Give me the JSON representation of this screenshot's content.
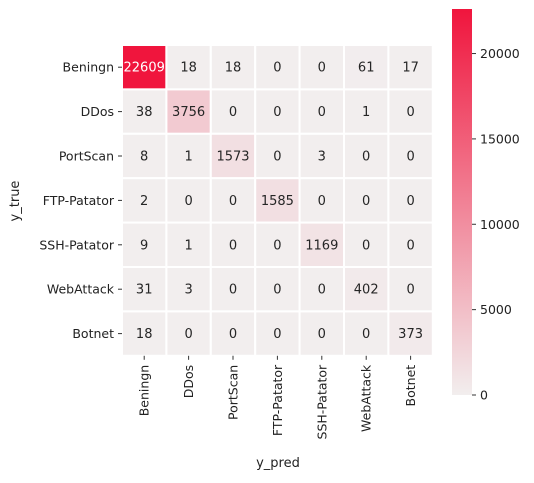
{
  "chart_data": {
    "type": "heatmap",
    "xlabel": "y_pred",
    "ylabel": "y_true",
    "x_categories": [
      "Beningn",
      "DDos",
      "PortScan",
      "FTP-Patator",
      "SSH-Patator",
      "WebAttack",
      "Botnet"
    ],
    "y_categories": [
      "Beningn",
      "DDos",
      "PortScan",
      "FTP-Patator",
      "SSH-Patator",
      "WebAttack",
      "Botnet"
    ],
    "values": [
      [
        22609,
        18,
        18,
        0,
        0,
        61,
        17
      ],
      [
        38,
        3756,
        0,
        0,
        0,
        1,
        0
      ],
      [
        8,
        1,
        1573,
        0,
        3,
        0,
        0
      ],
      [
        2,
        0,
        0,
        1585,
        0,
        0,
        0
      ],
      [
        9,
        1,
        0,
        0,
        1169,
        0,
        0
      ],
      [
        31,
        3,
        0,
        0,
        0,
        402,
        0
      ],
      [
        18,
        0,
        0,
        0,
        0,
        0,
        373
      ]
    ],
    "colorbar": {
      "ticks": [
        0,
        5000,
        10000,
        15000,
        20000
      ],
      "range": [
        0,
        22609
      ],
      "color_low": "#f2eeee",
      "color_high": "#f0153d"
    },
    "grid": true,
    "legend": "colorbar-right"
  }
}
